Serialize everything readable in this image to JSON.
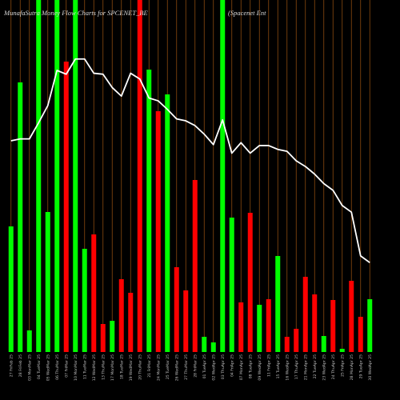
{
  "chart_data": {
    "type": "bar",
    "title": "MunafaSutra  Money Flow  Charts for SPCENET_BE",
    "subtitle": "(Spacenet Ent",
    "categories": [
      "27 FriFeb 25",
      "28 FriFeb 25",
      "03 MonMar 25",
      "04 TueMar 25",
      "05 WedMar 25",
      "06 ThuMar 25",
      "07 FriMar 25",
      "10 MonMar 25",
      "11 TueMar 25",
      "12 WedMar 25",
      "13 ThuMar 25",
      "17 MonMar 25",
      "18 TueMar 25",
      "19 WedMar 25",
      "20 ThuMar 25",
      "21 FriMar 25",
      "24 MonMar 25",
      "25 TueMar 25",
      "26 WedMar 25",
      "27 ThuMar 25",
      "28 FriMar 25",
      "01 TueApr 25",
      "02 WedApr 25",
      "03 ThuApr 25",
      "04 FriApr 25",
      "07 MonApr 25",
      "08 TueApr 25",
      "09 WedApr 25",
      "11 FriApr 25",
      "15 TueApr 25",
      "16 WedApr 25",
      "17 ThuApr 25",
      "21 MonApr 25",
      "22 TueApr 25",
      "23 WedApr 25",
      "24 ThuApr 25",
      "25 FriApr 25",
      "28 MonApr 25",
      "29 TueApr 25",
      "30 WedApr 25"
    ],
    "values": [
      157,
      337,
      27,
      440,
      175,
      440,
      363,
      440,
      129,
      147,
      35,
      39,
      91,
      74,
      440,
      353,
      301,
      322,
      106,
      77,
      215,
      19,
      12,
      440,
      168,
      62,
      174,
      59,
      66,
      120,
      19,
      29,
      94,
      72,
      20,
      65,
      4,
      89,
      44,
      66
    ],
    "colors": [
      "green",
      "green",
      "green",
      "green",
      "green",
      "green",
      "red",
      "green",
      "green",
      "red",
      "red",
      "green",
      "red",
      "red",
      "red",
      "green",
      "red",
      "green",
      "red",
      "red",
      "red",
      "green",
      "green",
      "green",
      "green",
      "red",
      "red",
      "green",
      "red",
      "green",
      "red",
      "red",
      "red",
      "red",
      "green",
      "red",
      "green",
      "red",
      "red",
      "green"
    ],
    "price_line": [
      372,
      374,
      374,
      391,
      409,
      446,
      442,
      458,
      458,
      443,
      442,
      428,
      419,
      443,
      437,
      417,
      414,
      405,
      395,
      393,
      388,
      379,
      368,
      394,
      359,
      370,
      359,
      367,
      367,
      363,
      361,
      351,
      345,
      337,
      327,
      320,
      304,
      297,
      251,
      244
    ],
    "price_ylim": [
      150,
      520
    ],
    "ylim": [
      0,
      440
    ],
    "grid": "vertical"
  },
  "colors": {
    "background": "#000000",
    "positive": "#00ff00",
    "negative": "#ff0000",
    "grid": "#8a4b0f",
    "price_line": "#ffffff"
  }
}
